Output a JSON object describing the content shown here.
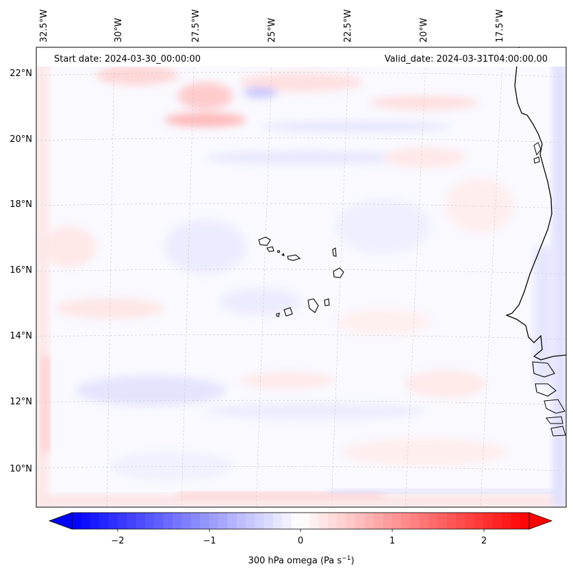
{
  "map": {
    "start_label": "Start date: 2024-03-30_00:00:00",
    "valid_label": "Valid_date: 2024-03-31T04:00:00.00",
    "lon_ticks": [
      "32.5°W",
      "30°W",
      "27.5°W",
      "25°W",
      "22.5°W",
      "20°W",
      "17.5°W"
    ],
    "lat_ticks": [
      "22°N",
      "20°N",
      "18°N",
      "16°N",
      "14°N",
      "12°N",
      "10°N"
    ],
    "extent": {
      "lon_min": -32.9,
      "lon_max": -16.2,
      "lat_min": 8.9,
      "lat_max": 22.8
    },
    "grid": true,
    "features": [
      "coastline-west-africa",
      "cape-verde-islands"
    ]
  },
  "colorbar": {
    "ticks": [
      "−2",
      "−1",
      "0",
      "1",
      "2"
    ],
    "label": "300 hPa omega (Pa s",
    "label_exp": "−1",
    "label_close": ")",
    "range": [
      -2.7,
      2.7
    ],
    "cmap": "bwr",
    "low_color": "#0000ff",
    "mid_color": "#ffffff",
    "high_color": "#ff0000"
  }
}
